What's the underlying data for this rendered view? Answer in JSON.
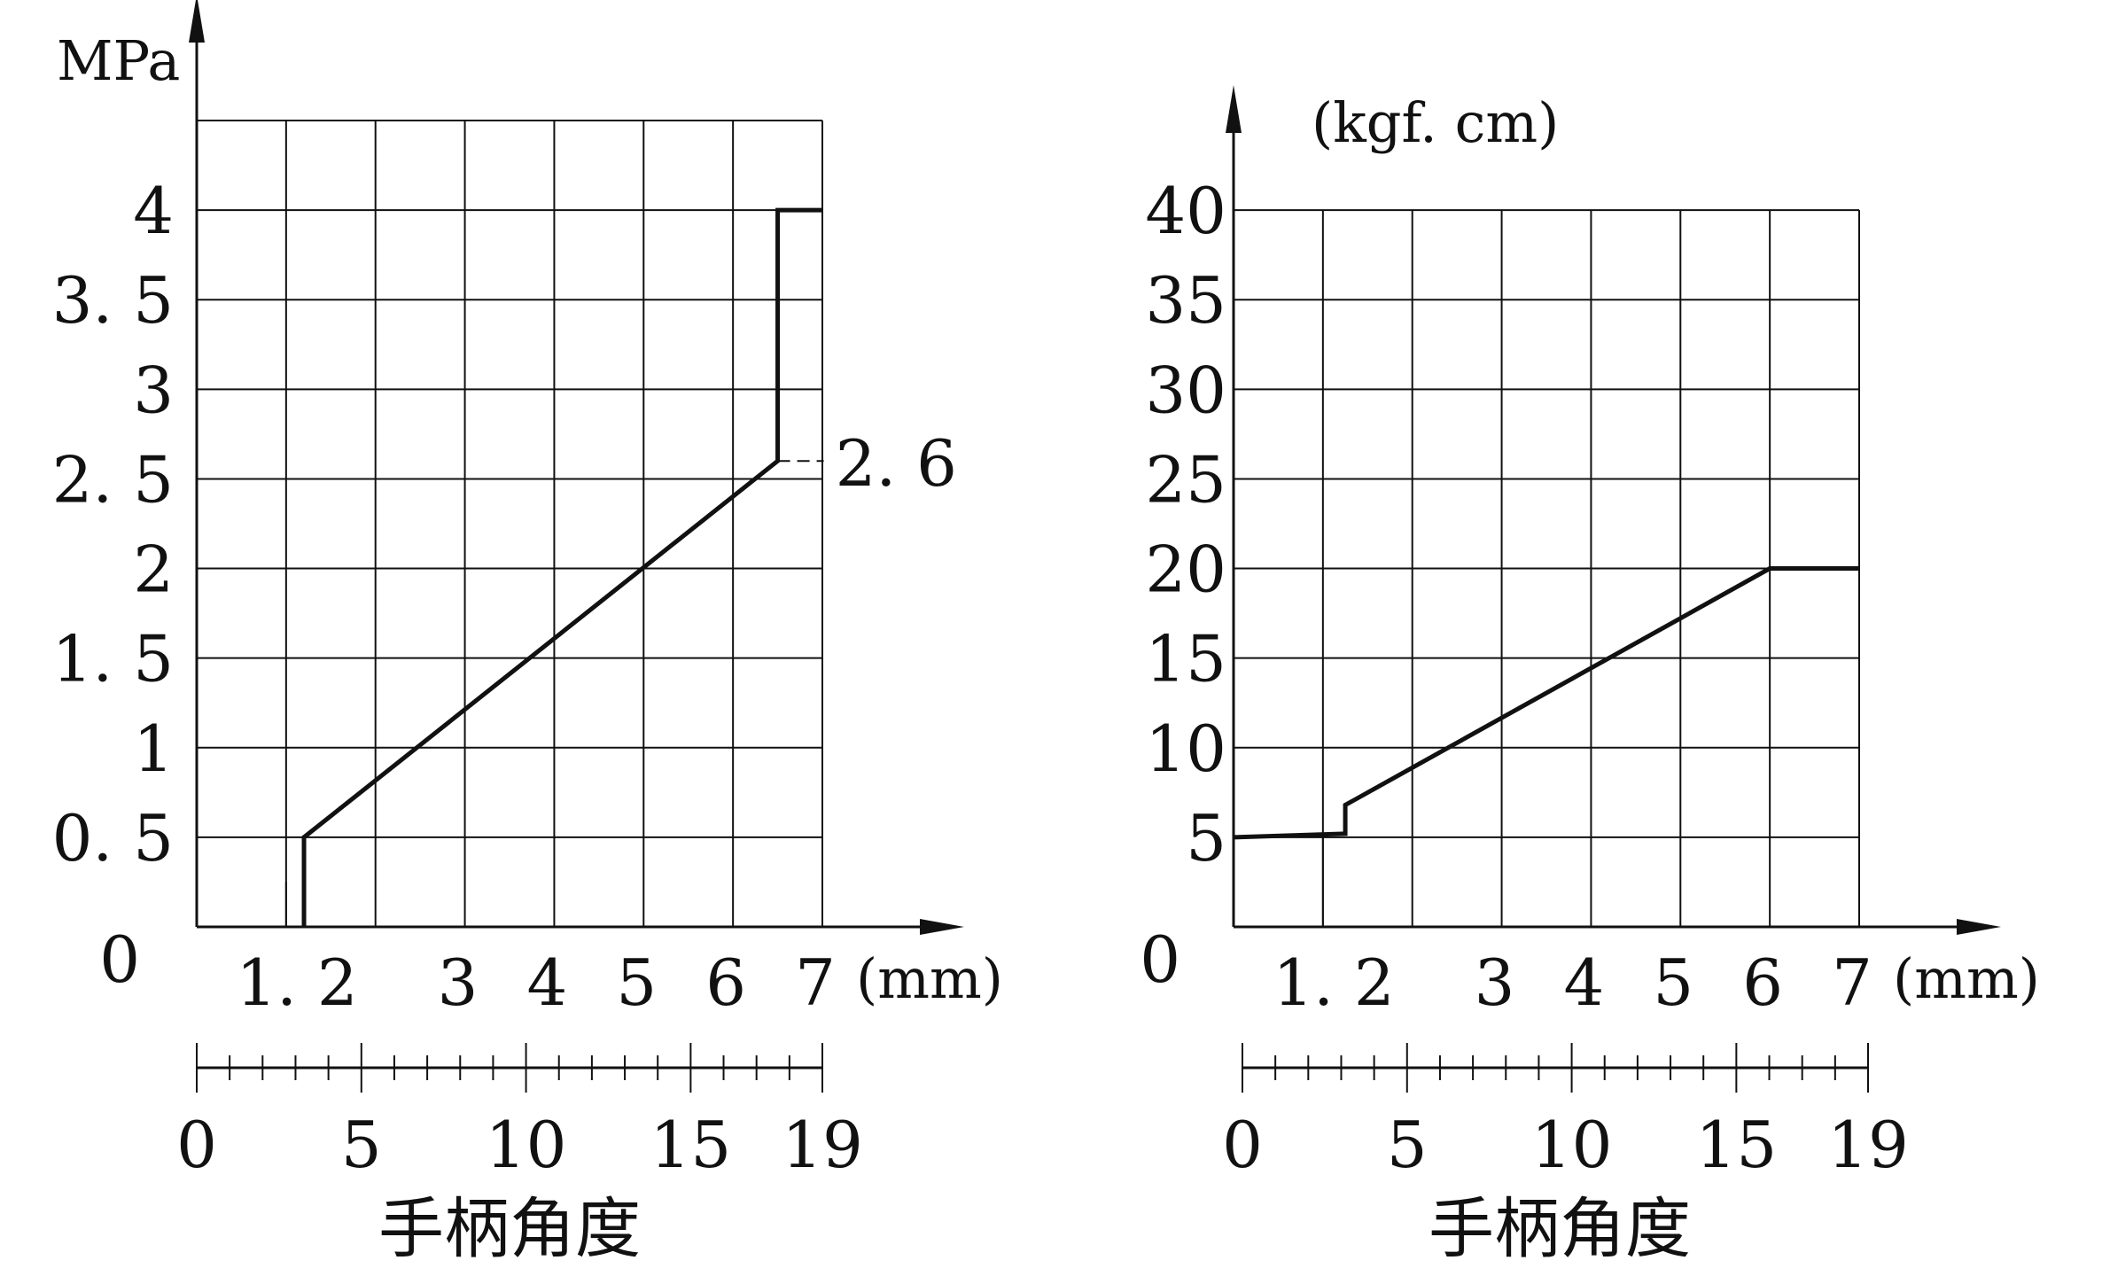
{
  "colors": {
    "line": "#111111",
    "grid": "#111111",
    "background": "#ffffff"
  },
  "chart_data": [
    {
      "type": "line",
      "title": "",
      "ylabel": "MPa",
      "xunit": "(mm)",
      "secondary_axis_label": "手柄角度",
      "xlim": [
        0,
        7
      ],
      "ylim": [
        0,
        4.5
      ],
      "grid": true,
      "x_tick_labels": [
        {
          "value": 1.2,
          "label": "1. 2"
        },
        {
          "value": 3,
          "label": "3"
        },
        {
          "value": 4,
          "label": "4"
        },
        {
          "value": 5,
          "label": "5"
        },
        {
          "value": 6,
          "label": "6"
        },
        {
          "value": 7,
          "label": "7"
        }
      ],
      "y_tick_labels": [
        {
          "value": 0,
          "label": "0"
        },
        {
          "value": 0.5,
          "label": "0. 5"
        },
        {
          "value": 1,
          "label": "1"
        },
        {
          "value": 1.5,
          "label": "1. 5"
        },
        {
          "value": 2,
          "label": "2"
        },
        {
          "value": 2.5,
          "label": "2. 5"
        },
        {
          "value": 3,
          "label": "3"
        },
        {
          "value": 3.5,
          "label": "3. 5"
        },
        {
          "value": 4,
          "label": "4"
        }
      ],
      "secondary_scale": {
        "range": [
          0,
          19
        ],
        "labels": [
          {
            "value": 0,
            "label": "0"
          },
          {
            "value": 5,
            "label": "5"
          },
          {
            "value": 10,
            "label": "10"
          },
          {
            "value": 15,
            "label": "15"
          },
          {
            "value": 19,
            "label": "19"
          }
        ],
        "minor_step": 1
      },
      "series": [
        {
          "x": [
            1.2,
            1.2,
            6.5,
            6.5,
            7
          ],
          "y": [
            0,
            0.5,
            2.6,
            4,
            4
          ]
        }
      ],
      "annotations": [
        {
          "text": "2. 6",
          "x": 6.5,
          "y": 2.6
        }
      ],
      "reference_lines": [
        {
          "x": [
            1.0,
            1.0
          ],
          "y": [
            0,
            0.25
          ]
        }
      ]
    },
    {
      "type": "line",
      "title": "",
      "ylabel": "(kgf. cm)",
      "xunit": "(mm)",
      "secondary_axis_label": "手柄角度",
      "xlim": [
        0,
        7
      ],
      "ylim": [
        0,
        45
      ],
      "grid": true,
      "x_tick_labels": [
        {
          "value": 1.2,
          "label": "1. 2"
        },
        {
          "value": 3,
          "label": "3"
        },
        {
          "value": 4,
          "label": "4"
        },
        {
          "value": 5,
          "label": "5"
        },
        {
          "value": 6,
          "label": "6"
        },
        {
          "value": 7,
          "label": "7"
        }
      ],
      "y_tick_labels": [
        {
          "value": 0,
          "label": "0"
        },
        {
          "value": 5,
          "label": "5"
        },
        {
          "value": 10,
          "label": "10"
        },
        {
          "value": 15,
          "label": "15"
        },
        {
          "value": 20,
          "label": "20"
        },
        {
          "value": 25,
          "label": "25"
        },
        {
          "value": 30,
          "label": "30"
        },
        {
          "value": 35,
          "label": "35"
        },
        {
          "value": 40,
          "label": "40"
        }
      ],
      "secondary_scale": {
        "range": [
          0,
          19
        ],
        "labels": [
          {
            "value": 0,
            "label": "0"
          },
          {
            "value": 5,
            "label": "5"
          },
          {
            "value": 10,
            "label": "10"
          },
          {
            "value": 15,
            "label": "15"
          },
          {
            "value": 19,
            "label": "19"
          }
        ],
        "minor_step": 1
      },
      "series": [
        {
          "x": [
            0,
            1.25,
            1.25,
            6,
            7
          ],
          "y": [
            5,
            5.2,
            6.8,
            20,
            20
          ]
        }
      ],
      "annotations": [],
      "reference_lines": [
        {
          "x": [
            1.0,
            1.0
          ],
          "y": [
            0,
            5.1
          ]
        }
      ]
    }
  ]
}
